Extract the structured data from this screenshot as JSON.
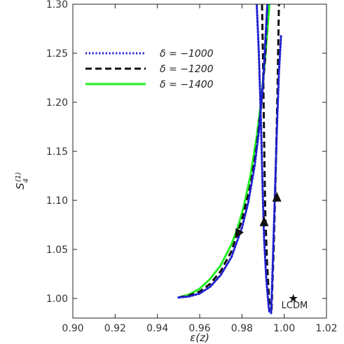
{
  "chart_data": {
    "type": "line",
    "xlabel": "ε(z)",
    "ylabel_main": "S",
    "ylabel_sub": "4",
    "ylabel_sup": "(1)",
    "xlim": [
      0.9,
      1.02
    ],
    "ylim": [
      0.98,
      1.3
    ],
    "x_ticks": [
      "0.90",
      "0.92",
      "0.94",
      "0.96",
      "0.98",
      "1.00",
      "1.02"
    ],
    "y_ticks": [
      "1.00",
      "1.05",
      "1.10",
      "1.15",
      "1.20",
      "1.25",
      "1.30"
    ],
    "grid": false,
    "legend_position": "top-left",
    "series": [
      {
        "name": "δ = −1000",
        "color": "#1f1fd0",
        "style": "dotted",
        "segments": [
          [
            [
              0.95,
              1.001
            ],
            [
              0.955,
              1.002
            ],
            [
              0.96,
              1.005
            ],
            [
              0.965,
              1.012
            ],
            [
              0.97,
              1.024
            ],
            [
              0.975,
              1.042
            ],
            [
              0.98,
              1.072
            ],
            [
              0.983,
              1.098
            ],
            [
              0.986,
              1.135
            ],
            [
              0.988,
              1.17
            ],
            [
              0.99,
              1.22
            ],
            [
              0.991,
              1.26
            ],
            [
              0.992,
              1.3
            ]
          ],
          [
            [
              0.987,
              1.3
            ],
            [
              0.988,
              1.25
            ],
            [
              0.989,
              1.18
            ],
            [
              0.9898,
              1.11
            ],
            [
              0.9905,
              1.06
            ],
            [
              0.9915,
              1.02
            ],
            [
              0.9925,
              0.995
            ],
            [
              0.993,
              0.985
            ]
          ],
          [
            [
              0.9938,
              0.985
            ],
            [
              0.9945,
              1.03
            ],
            [
              0.9955,
              1.1
            ],
            [
              0.9965,
              1.17
            ],
            [
              0.9975,
              1.23
            ],
            [
              0.9985,
              1.268
            ]
          ]
        ]
      },
      {
        "name": "δ = −1200",
        "color": "#111111",
        "style": "dashed",
        "segments": [
          [
            [
              0.95,
              1.001
            ],
            [
              0.955,
              1.003
            ],
            [
              0.96,
              1.007
            ],
            [
              0.965,
              1.015
            ],
            [
              0.97,
              1.028
            ],
            [
              0.975,
              1.048
            ],
            [
              0.98,
              1.08
            ],
            [
              0.984,
              1.115
            ],
            [
              0.987,
              1.155
            ],
            [
              0.989,
              1.195
            ],
            [
              0.991,
              1.245
            ],
            [
              0.992,
              1.3
            ]
          ],
          [
            [
              0.9895,
              1.3
            ],
            [
              0.99,
              1.24
            ],
            [
              0.9905,
              1.16
            ],
            [
              0.991,
              1.09
            ],
            [
              0.9918,
              1.04
            ],
            [
              0.9928,
              1.0
            ],
            [
              0.9935,
              0.988
            ]
          ],
          [
            [
              0.994,
              0.988
            ],
            [
              0.995,
              1.05
            ],
            [
              0.996,
              1.13
            ],
            [
              0.9968,
              1.21
            ],
            [
              0.9975,
              1.3
            ]
          ]
        ]
      },
      {
        "name": "δ = −1400",
        "color": "#22ee22",
        "style": "solid",
        "segments": [
          [
            [
              0.95,
              1.001
            ],
            [
              0.955,
              1.004
            ],
            [
              0.96,
              1.01
            ],
            [
              0.965,
              1.02
            ],
            [
              0.97,
              1.034
            ],
            [
              0.975,
              1.055
            ],
            [
              0.978,
              1.072
            ],
            [
              0.981,
              1.095
            ],
            [
              0.984,
              1.125
            ],
            [
              0.987,
              1.165
            ],
            [
              0.989,
              1.2
            ],
            [
              0.991,
              1.245
            ],
            [
              0.993,
              1.3
            ]
          ]
        ]
      }
    ],
    "annotations": [
      {
        "type": "star",
        "x": 1.0,
        "y": 1.0,
        "label": "LCDM"
      }
    ],
    "arrows": [
      {
        "x": 0.978,
        "y": 1.066,
        "direction": "down-left"
      },
      {
        "x": 0.9905,
        "y": 1.078,
        "direction": "up"
      },
      {
        "x": 0.9965,
        "y": 1.103,
        "direction": "up"
      }
    ]
  }
}
